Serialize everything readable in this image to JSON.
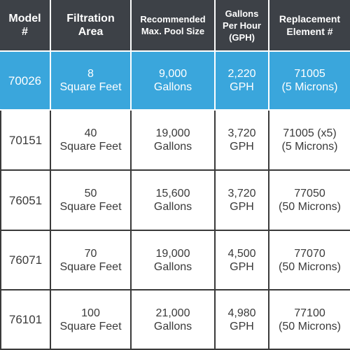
{
  "headers": [
    {
      "lines": [
        "Model",
        "#"
      ]
    },
    {
      "lines": [
        "Filtration",
        "Area"
      ]
    },
    {
      "lines": [
        "Recommended",
        "Max. Pool Size"
      ]
    },
    {
      "lines": [
        "Gallons",
        "Per Hour",
        "(GPH)"
      ]
    },
    {
      "lines": [
        "Replacement",
        "Element #"
      ]
    }
  ],
  "rows": [
    {
      "highlight": true,
      "model": "70026",
      "area": [
        "8",
        "Square Feet"
      ],
      "size": [
        "9,000",
        "Gallons"
      ],
      "gph": [
        "2,220",
        "GPH"
      ],
      "element": [
        "71005",
        "(5 Microns)"
      ]
    },
    {
      "highlight": false,
      "model": "70151",
      "area": [
        "40",
        "Square Feet"
      ],
      "size": [
        "19,000",
        "Gallons"
      ],
      "gph": [
        "3,720",
        "GPH"
      ],
      "element": [
        "71005 (x5)",
        "(5 Microns)"
      ]
    },
    {
      "highlight": false,
      "model": "76051",
      "area": [
        "50",
        "Square Feet"
      ],
      "size": [
        "15,600",
        "Gallons"
      ],
      "gph": [
        "3,720",
        "GPH"
      ],
      "element": [
        "77050",
        "(50 Microns)"
      ]
    },
    {
      "highlight": false,
      "model": "76071",
      "area": [
        "70",
        "Square Feet"
      ],
      "size": [
        "19,000",
        "Gallons"
      ],
      "gph": [
        "4,500",
        "GPH"
      ],
      "element": [
        "77070",
        "(50 Microns)"
      ]
    },
    {
      "highlight": false,
      "model": "76101",
      "area": [
        "100",
        "Square Feet"
      ],
      "size": [
        "21,000",
        "Gallons"
      ],
      "gph": [
        "4,980",
        "GPH"
      ],
      "element": [
        "77100",
        "(50 Microns)"
      ]
    }
  ],
  "colors": {
    "header_bg": "#3d4147",
    "highlight_bg": "#3aa6dc",
    "text": "#3a3a3a",
    "grid": "#3a3a3a"
  }
}
